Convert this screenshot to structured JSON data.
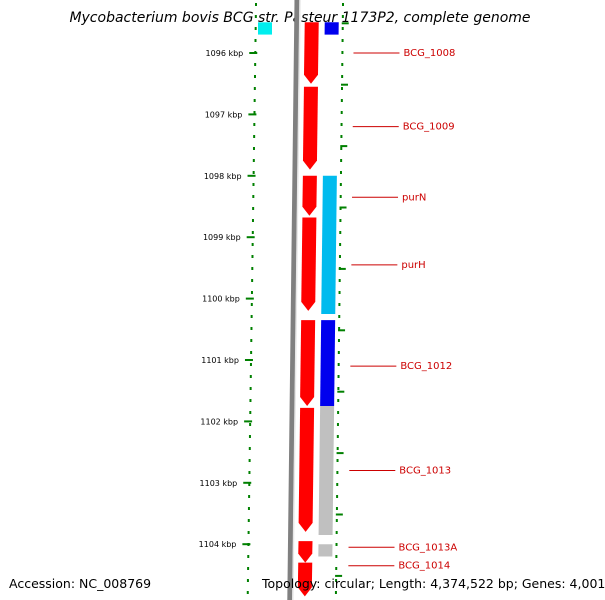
{
  "title": "Mycobacterium bovis BCG str. Pasteur 1173P2, complete genome",
  "footer": {
    "accession": "Accession: NC_008769",
    "stats": "Topology: circular; Length: 4,374,522 bp; Genes: 4,001"
  },
  "colors": {
    "forward_gene": "#ff0000",
    "reverse_gene_light": "#00bbee",
    "reverse_gene_dark": "#0000ee",
    "reverse_gene_gray": "#c0c0c0",
    "backbone": "#808080",
    "ruler_dots": "#008000",
    "gene_label": "#cc0000"
  },
  "ruler": {
    "unit": "kbp",
    "ticks": [
      "1096 kbp",
      "1097 kbp",
      "1098 kbp",
      "1099 kbp",
      "1100 kbp",
      "1101 kbp",
      "1102 kbp",
      "1103 kbp",
      "1104 kbp"
    ]
  },
  "features": {
    "forward": [
      {
        "start_kbp": 1095.5,
        "end_kbp": 1096.5
      },
      {
        "start_kbp": 1096.55,
        "end_kbp": 1097.9
      },
      {
        "start_kbp": 1098.0,
        "end_kbp": 1098.65
      },
      {
        "start_kbp": 1098.68,
        "end_kbp": 1100.2
      },
      {
        "start_kbp": 1100.35,
        "end_kbp": 1101.75
      },
      {
        "start_kbp": 1101.78,
        "end_kbp": 1103.8
      },
      {
        "start_kbp": 1103.95,
        "end_kbp": 1104.3
      },
      {
        "start_kbp": 1104.3,
        "end_kbp": 1104.85
      }
    ],
    "reverse": [
      {
        "start_kbp": 1095.5,
        "end_kbp": 1095.7,
        "color": "dark"
      },
      {
        "start_kbp": 1098.0,
        "end_kbp": 1100.25,
        "color": "light"
      },
      {
        "start_kbp": 1100.35,
        "end_kbp": 1101.75,
        "color": "dark"
      },
      {
        "start_kbp": 1101.75,
        "end_kbp": 1103.85,
        "color": "gray"
      },
      {
        "start_kbp": 1104.0,
        "end_kbp": 1104.2,
        "color": "gray"
      }
    ],
    "cyan_edge": [
      {
        "start_kbp": 1095.5,
        "end_kbp": 1095.7
      }
    ]
  },
  "gene_labels": [
    {
      "name": "BCG_1008",
      "at_kbp": 1096.0
    },
    {
      "name": "BCG_1009",
      "at_kbp": 1097.2
    },
    {
      "name": "purN",
      "at_kbp": 1098.35
    },
    {
      "name": "purH",
      "at_kbp": 1099.45
    },
    {
      "name": "BCG_1012",
      "at_kbp": 1101.1
    },
    {
      "name": "BCG_1013",
      "at_kbp": 1102.8
    },
    {
      "name": "BCG_1013A",
      "at_kbp": 1104.05
    },
    {
      "name": "BCG_1014",
      "at_kbp": 1104.35
    }
  ]
}
